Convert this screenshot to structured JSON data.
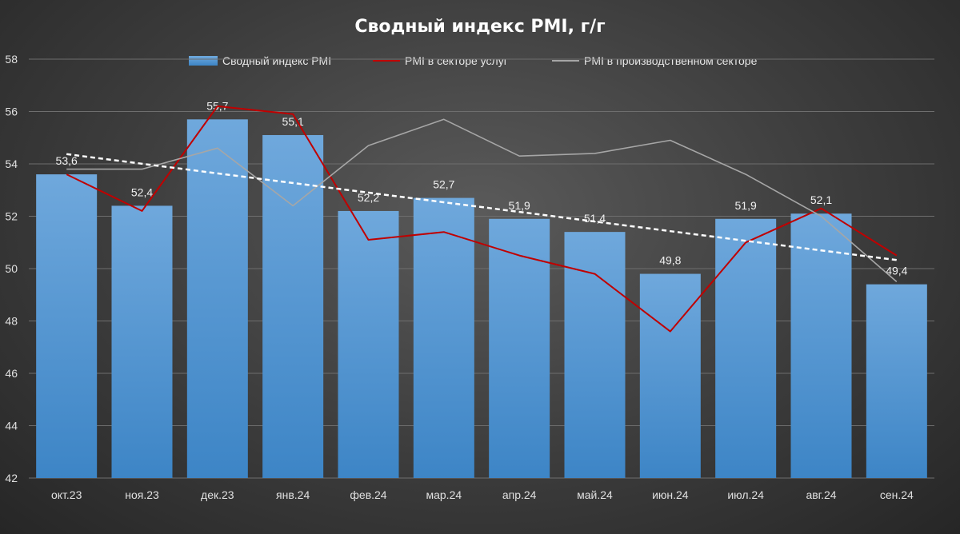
{
  "chart_data": {
    "type": "bar",
    "title": "Сводный индекс PMI, г/г",
    "categories": [
      "окт.23",
      "ноя.23",
      "дек.23",
      "янв.24",
      "фев.24",
      "мар.24",
      "апр.24",
      "май.24",
      "июн.24",
      "июл.24",
      "авг.24",
      "сен.24"
    ],
    "series": [
      {
        "name": "Сводный индекс PMI",
        "type": "bar",
        "color": "#5b9bd5",
        "values": [
          53.6,
          52.4,
          55.7,
          55.1,
          52.2,
          52.7,
          51.9,
          51.4,
          49.8,
          51.9,
          52.1,
          49.4
        ],
        "labels": [
          "53,6",
          "52,4",
          "55,7",
          "55,1",
          "52,2",
          "52,7",
          "51,9",
          "51,4",
          "49,8",
          "51,9",
          "52,1",
          "49,4"
        ]
      },
      {
        "name": "PMI в секторе услуг",
        "type": "line",
        "color": "#c00000",
        "values": [
          53.6,
          52.2,
          56.2,
          55.9,
          51.1,
          51.4,
          50.5,
          49.8,
          47.6,
          51.0,
          52.3,
          50.5
        ]
      },
      {
        "name": "PMI в производственном секторе",
        "type": "line",
        "color": "#a6a6a6",
        "values": [
          53.8,
          53.8,
          54.6,
          52.4,
          54.7,
          55.7,
          54.3,
          54.4,
          54.9,
          53.6,
          52.0,
          49.5
        ]
      }
    ],
    "trendline": {
      "type": "linear",
      "series": "Сводный индекс PMI",
      "style": "dashed",
      "color": "#ffffff"
    },
    "yticks": [
      "58",
      "56",
      "54",
      "52",
      "50",
      "48",
      "46",
      "44",
      "42"
    ],
    "ylim": [
      42,
      58
    ],
    "grid": true,
    "legend_position": "top"
  }
}
